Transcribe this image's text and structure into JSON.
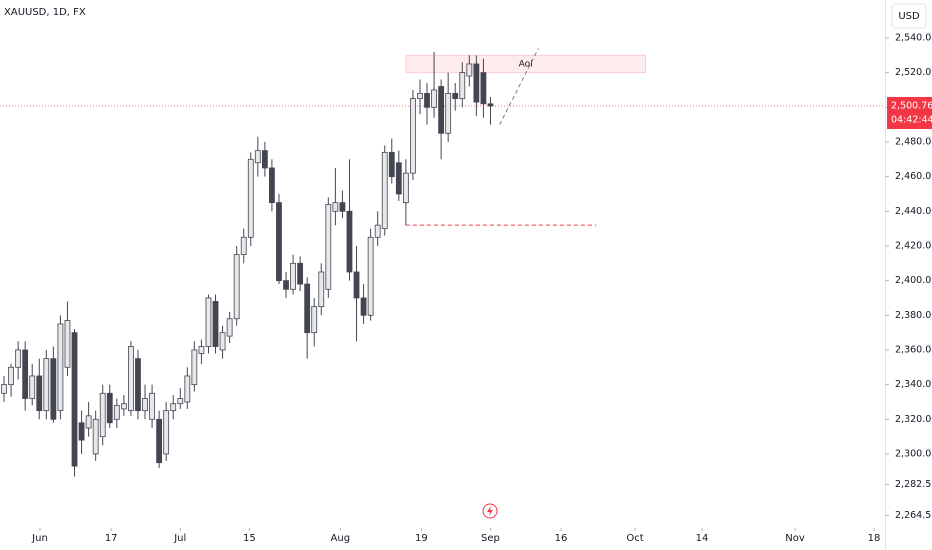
{
  "chart_data": {
    "type": "candlestick",
    "title": "XAUUSD, 1D, FX",
    "currency": "USD",
    "up_color": "#e8e8ec",
    "down_color": "#434651",
    "border_color": "#434651",
    "ohlc": [
      [
        2335,
        2345,
        2330,
        2340
      ],
      [
        2340,
        2352,
        2333,
        2350
      ],
      [
        2350,
        2365,
        2343,
        2360
      ],
      [
        2360,
        2365,
        2325,
        2332
      ],
      [
        2332,
        2352,
        2328,
        2345
      ],
      [
        2345,
        2355,
        2320,
        2325
      ],
      [
        2325,
        2360,
        2320,
        2355
      ],
      [
        2355,
        2362,
        2318,
        2320
      ],
      [
        2325,
        2380,
        2320,
        2375
      ],
      [
        2350,
        2388,
        2345,
        2377
      ],
      [
        2370,
        2372,
        2287,
        2293
      ],
      [
        2318,
        2325,
        2300,
        2308
      ],
      [
        2315,
        2330,
        2310,
        2322
      ],
      [
        2300,
        2325,
        2296,
        2320
      ],
      [
        2310,
        2340,
        2305,
        2335
      ],
      [
        2335,
        2340,
        2315,
        2318
      ],
      [
        2320,
        2332,
        2315,
        2328
      ],
      [
        2326,
        2334,
        2322,
        2329
      ],
      [
        2325,
        2365,
        2322,
        2362
      ],
      [
        2355,
        2360,
        2320,
        2325
      ],
      [
        2325,
        2340,
        2320,
        2332
      ],
      [
        2320,
        2340,
        2315,
        2335
      ],
      [
        2320,
        2325,
        2292,
        2295
      ],
      [
        2300,
        2330,
        2296,
        2325
      ],
      [
        2325,
        2334,
        2320,
        2329
      ],
      [
        2329,
        2338,
        2326,
        2332
      ],
      [
        2330,
        2350,
        2326,
        2345
      ],
      [
        2340,
        2365,
        2336,
        2360
      ],
      [
        2358,
        2366,
        2352,
        2362
      ],
      [
        2362,
        2392,
        2358,
        2390
      ],
      [
        2388,
        2392,
        2358,
        2362
      ],
      [
        2360,
        2374,
        2355,
        2370
      ],
      [
        2368,
        2382,
        2364,
        2378
      ],
      [
        2378,
        2420,
        2374,
        2415
      ],
      [
        2415,
        2430,
        2410,
        2425
      ],
      [
        2425,
        2474,
        2420,
        2470
      ],
      [
        2468,
        2483,
        2460,
        2475
      ],
      [
        2475,
        2480,
        2460,
        2465
      ],
      [
        2465,
        2470,
        2440,
        2445
      ],
      [
        2445,
        2450,
        2398,
        2400
      ],
      [
        2400,
        2405,
        2390,
        2395
      ],
      [
        2395,
        2415,
        2392,
        2410
      ],
      [
        2410,
        2414,
        2394,
        2398
      ],
      [
        2398,
        2402,
        2355,
        2370
      ],
      [
        2370,
        2390,
        2362,
        2385
      ],
      [
        2385,
        2410,
        2380,
        2405
      ],
      [
        2395,
        2448,
        2390,
        2444
      ],
      [
        2440,
        2465,
        2432,
        2445
      ],
      [
        2445,
        2452,
        2436,
        2440
      ],
      [
        2440,
        2470,
        2400,
        2405
      ],
      [
        2405,
        2420,
        2365,
        2390
      ],
      [
        2390,
        2398,
        2375,
        2380
      ],
      [
        2380,
        2430,
        2377,
        2425
      ],
      [
        2425,
        2440,
        2420,
        2432
      ],
      [
        2430,
        2478,
        2426,
        2474
      ],
      [
        2474,
        2482,
        2456,
        2460
      ],
      [
        2468,
        2475,
        2446,
        2450
      ],
      [
        2445,
        2470,
        2432,
        2462
      ],
      [
        2462,
        2510,
        2458,
        2505
      ],
      [
        2505,
        2516,
        2496,
        2508
      ],
      [
        2508,
        2514,
        2490,
        2500
      ],
      [
        2500,
        2532,
        2494,
        2510
      ],
      [
        2512,
        2516,
        2470,
        2485
      ],
      [
        2485,
        2520,
        2480,
        2508
      ],
      [
        2508,
        2514,
        2498,
        2505
      ],
      [
        2505,
        2526,
        2500,
        2520
      ],
      [
        2518,
        2530,
        2512,
        2525
      ],
      [
        2525,
        2530,
        2495,
        2503
      ],
      [
        2520,
        2528,
        2494,
        2502
      ],
      [
        2502,
        2506,
        2490,
        2500.76
      ]
    ],
    "xlim": [
      -0.57,
      124.96
    ],
    "ylim": [
      2244.6,
      2561.9
    ],
    "xticks": [
      {
        "value": 5.1,
        "label": "Jun"
      },
      {
        "value": 15.2,
        "label": "17"
      },
      {
        "value": 25,
        "label": "Jul"
      },
      {
        "value": 34.8,
        "label": "15"
      },
      {
        "value": 47.7,
        "label": "Aug"
      },
      {
        "value": 59.2,
        "label": "19"
      },
      {
        "value": 69,
        "label": "Sep"
      },
      {
        "value": 79,
        "label": "16"
      },
      {
        "value": 89.5,
        "label": "Oct"
      },
      {
        "value": 99,
        "label": "14"
      },
      {
        "value": 112.2,
        "label": "Nov"
      },
      {
        "value": 123.4,
        "label": "18"
      }
    ],
    "yticks": [
      {
        "value": 2264.5,
        "label": "2,264.50"
      },
      {
        "value": 2282.5,
        "label": "2,282.50"
      },
      {
        "value": 2300,
        "label": "2,300.00"
      },
      {
        "value": 2320,
        "label": "2,320.00"
      },
      {
        "value": 2340,
        "label": "2,340.00"
      },
      {
        "value": 2360,
        "label": "2,360.00"
      },
      {
        "value": 2380,
        "label": "2,380.00"
      },
      {
        "value": 2400,
        "label": "2,400.00"
      },
      {
        "value": 2420,
        "label": "2,420.00"
      },
      {
        "value": 2440,
        "label": "2,440.00"
      },
      {
        "value": 2460,
        "label": "2,460.00"
      },
      {
        "value": 2480,
        "label": "2,480.00"
      },
      {
        "value": 2500,
        "label": "2,500.00"
      },
      {
        "value": 2520,
        "label": "2,520.00"
      },
      {
        "value": 2540,
        "label": "2,540.00"
      }
    ],
    "last_price": {
      "value": 2500.76,
      "label": "2,500.76"
    },
    "countdown": "04:42:44",
    "zone": {
      "label": "AoI",
      "x": [
        57,
        91
      ],
      "y": [
        2520,
        2530
      ]
    },
    "support": {
      "x": [
        57,
        84
      ],
      "y": 2432
    },
    "projection": {
      "x": [
        70.3,
        75.8
      ],
      "y": [
        2490,
        2534
      ]
    }
  }
}
